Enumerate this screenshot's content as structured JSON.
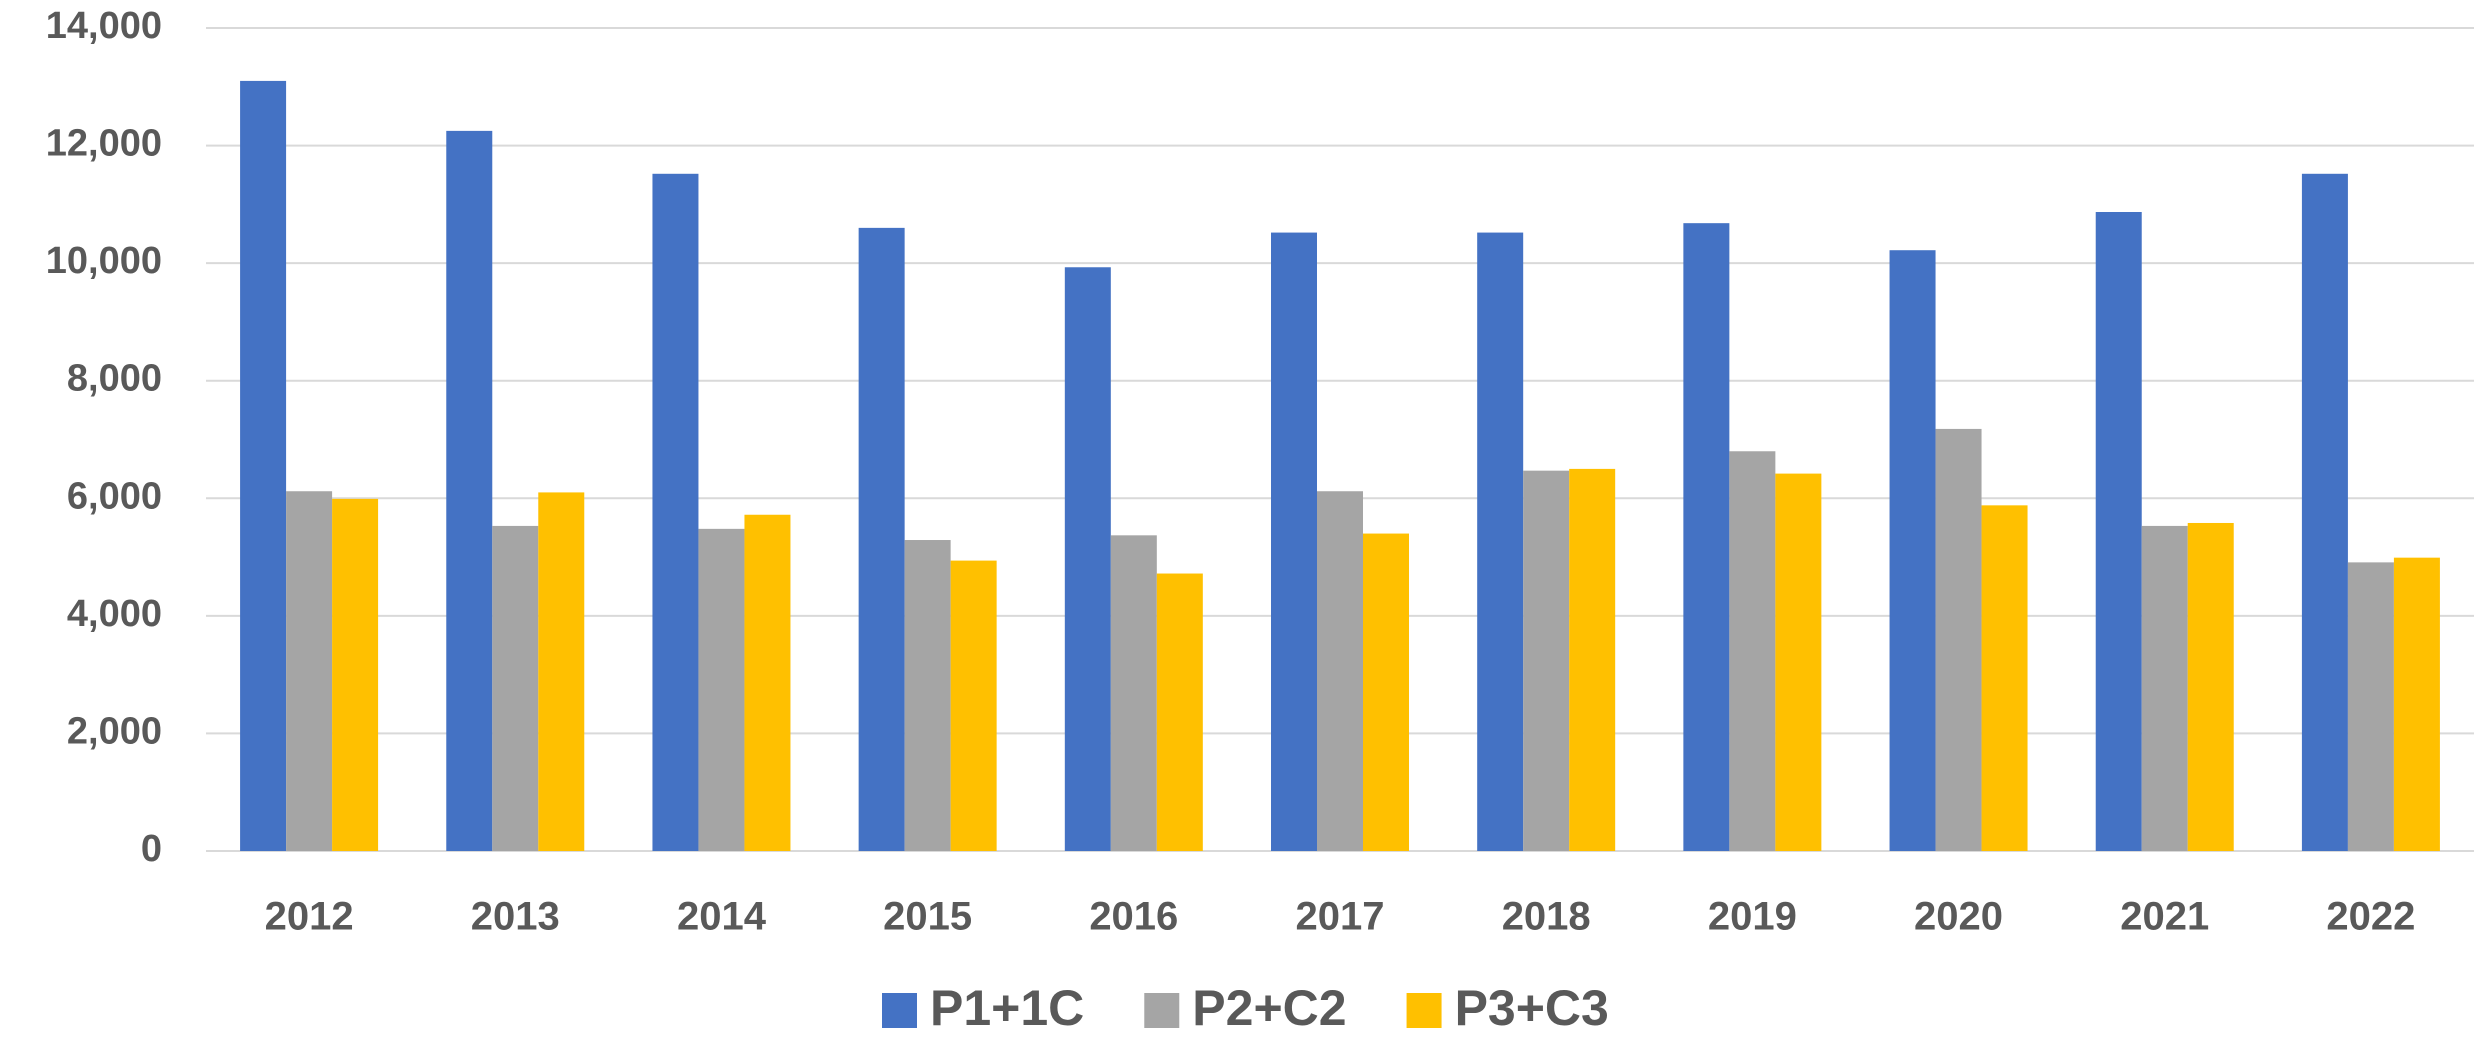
{
  "chart_data": {
    "type": "bar",
    "categories": [
      "2012",
      "2013",
      "2014",
      "2015",
      "2016",
      "2017",
      "2018",
      "2019",
      "2020",
      "2021",
      "2022"
    ],
    "series": [
      {
        "name": "P1+1C",
        "color": "#4472c4",
        "values": [
          13100,
          12250,
          11520,
          10600,
          9930,
          10520,
          10520,
          10680,
          10220,
          10870,
          11520
        ]
      },
      {
        "name": "P2+C2",
        "color": "#a5a5a5",
        "values": [
          6120,
          5530,
          5480,
          5290,
          5370,
          6120,
          6470,
          6800,
          7180,
          5530,
          4910
        ]
      },
      {
        "name": "P3+C3",
        "color": "#ffc000",
        "values": [
          5990,
          6100,
          5720,
          4940,
          4720,
          5400,
          6500,
          6420,
          5880,
          5580,
          4990
        ]
      }
    ],
    "ylim": [
      0,
      14000
    ],
    "yticks": [
      0,
      {
        "value": 2000,
        "label": "2,000"
      },
      {
        "value": 4000,
        "label": "4,000"
      },
      {
        "value": 6000,
        "label": "6,000"
      },
      {
        "value": 8000,
        "label": "8,000"
      },
      {
        "value": 10000,
        "label": "10,000"
      },
      {
        "value": 12000,
        "label": "12,000"
      },
      {
        "value": 14000,
        "label": "14,000"
      }
    ],
    "grid": true,
    "legend": "bottom"
  }
}
